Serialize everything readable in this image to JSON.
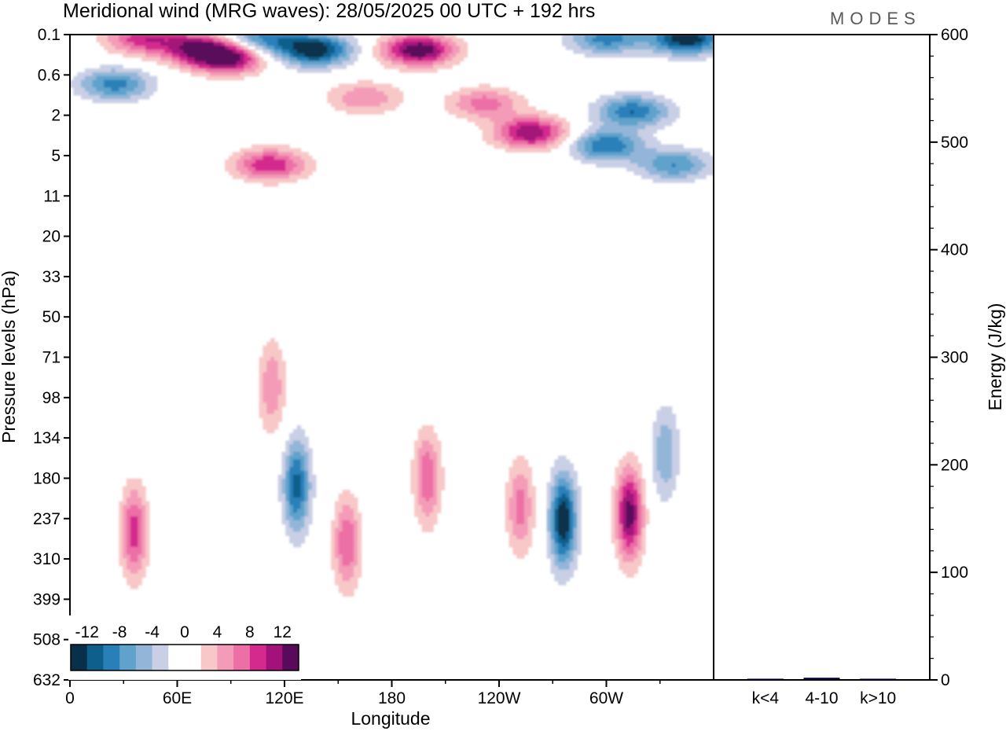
{
  "chart_data": {
    "type": "heatmap",
    "title": "Meridional wind (MRG waves):  28/05/2025  00 UTC  + 192 hrs",
    "xlabel": "Longitude",
    "ylabel": "Pressure levels (hPa)",
    "brand": "MODES",
    "x_ticks": [
      "0",
      "60E",
      "120E",
      "180",
      "120W",
      "60W"
    ],
    "y_ticks": [
      "0.1",
      "0.6",
      "2",
      "5",
      "11",
      "20",
      "33",
      "50",
      "71",
      "98",
      "134",
      "180",
      "237",
      "310",
      "399",
      "508",
      "632"
    ],
    "colorbar": {
      "labels": [
        "-12",
        "-8",
        "-4",
        "0",
        "4",
        "8",
        "12"
      ],
      "levels": [
        -14,
        -12,
        -10,
        -8,
        -6,
        -4,
        -2,
        0,
        2,
        4,
        6,
        8,
        10,
        12,
        14
      ],
      "colors": [
        "#08304b",
        "#0e5f8c",
        "#2980b9",
        "#5fa2cc",
        "#93b6d8",
        "#c9cfe5",
        "#ffffff",
        "#ffffff",
        "#f8c8c8",
        "#f49bb8",
        "#ec6fa5",
        "#d42a8e",
        "#a3127a",
        "#5a0a5a"
      ]
    },
    "features": [
      {
        "lon": 40,
        "p": 0.12,
        "value": 9
      },
      {
        "lon": 70,
        "p": 0.18,
        "value": 10
      },
      {
        "lon": 88,
        "p": 0.28,
        "value": 14
      },
      {
        "lon": 107,
        "p": 0.12,
        "value": -9
      },
      {
        "lon": 137,
        "p": 0.2,
        "value": -14
      },
      {
        "lon": 195,
        "p": 0.2,
        "value": 14
      },
      {
        "lon": 300,
        "p": 0.12,
        "value": -9
      },
      {
        "lon": 345,
        "p": 0.12,
        "value": -14
      },
      {
        "lon": 25,
        "p": 0.8,
        "value": -9
      },
      {
        "lon": 165,
        "p": 1.2,
        "value": 6
      },
      {
        "lon": 232,
        "p": 1.4,
        "value": 7
      },
      {
        "lon": 258,
        "p": 3.0,
        "value": 12
      },
      {
        "lon": 315,
        "p": 1.8,
        "value": -10
      },
      {
        "lon": 300,
        "p": 4.0,
        "value": -10
      },
      {
        "lon": 338,
        "p": 6.0,
        "value": -8
      },
      {
        "lon": 112,
        "p": 6.0,
        "value": 10
      },
      {
        "lon": 36,
        "p": 260,
        "value": 9
      },
      {
        "lon": 113,
        "p": 90,
        "value": 6
      },
      {
        "lon": 127,
        "p": 190,
        "value": -11
      },
      {
        "lon": 155,
        "p": 280,
        "value": 8
      },
      {
        "lon": 200,
        "p": 180,
        "value": 8
      },
      {
        "lon": 252,
        "p": 220,
        "value": 7
      },
      {
        "lon": 276,
        "p": 240,
        "value": -14
      },
      {
        "lon": 313,
        "p": 230,
        "value": 13
      },
      {
        "lon": 333,
        "p": 150,
        "value": -6
      }
    ],
    "side_bar": {
      "type": "bar",
      "ylabel": "Energy (J/kg)",
      "ylim": [
        0,
        600
      ],
      "y_ticks": [
        "0",
        "100",
        "200",
        "300",
        "400",
        "500",
        "600"
      ],
      "categories": [
        "k<4",
        "4-10",
        "k>10"
      ],
      "values": [
        0.5,
        2,
        0.5
      ],
      "colors": [
        "#000033",
        "#000033",
        "#000033"
      ]
    }
  }
}
